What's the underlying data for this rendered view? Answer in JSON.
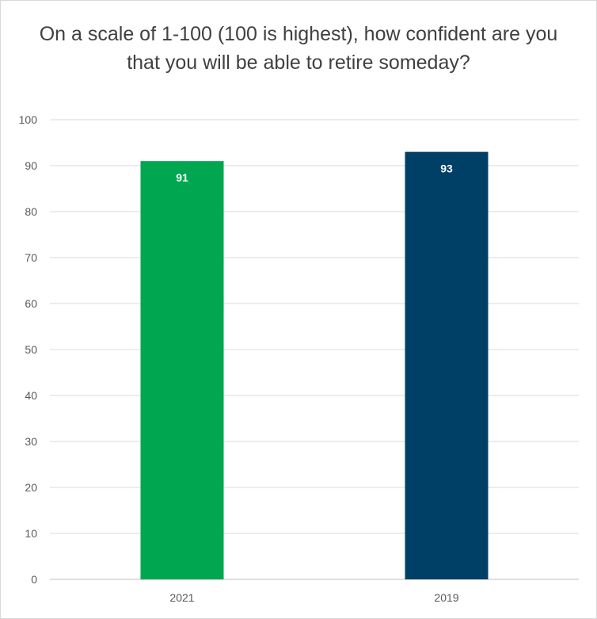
{
  "chart_data": {
    "type": "bar",
    "title": "On a scale of 1-100 (100 is highest), how confident are you that you will be able to retire someday?",
    "categories": [
      "2021",
      "2019"
    ],
    "values": [
      91,
      93
    ],
    "data_labels": [
      "91",
      "93"
    ],
    "bar_colors": [
      "#00a650",
      "#003f66"
    ],
    "yticks": [
      "0",
      "10",
      "20",
      "30",
      "40",
      "50",
      "60",
      "70",
      "80",
      "90",
      "100"
    ],
    "ylim": [
      0,
      100
    ],
    "xlabel": "",
    "ylabel": "",
    "grid": true,
    "legend": "none"
  }
}
